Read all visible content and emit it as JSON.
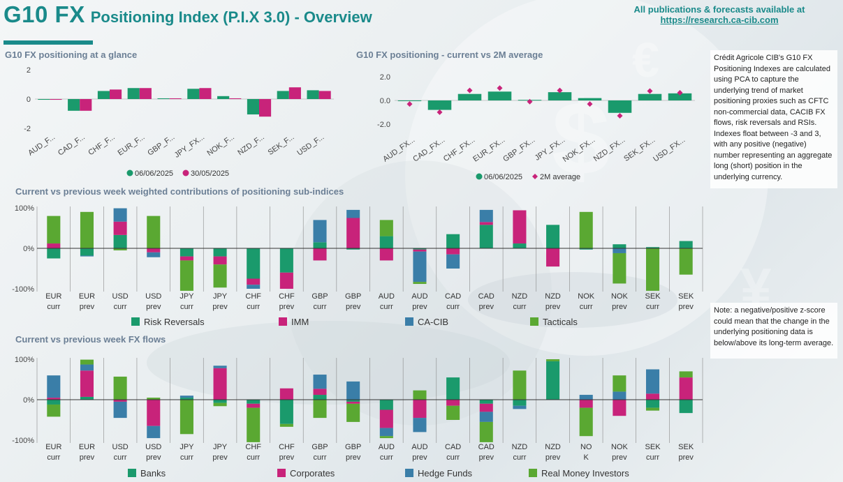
{
  "header": {
    "title_main": "G10 FX",
    "title_sub": "Positioning Index (P.I.X 3.0) - Overview",
    "publications_text": "All publications & forecasts available at",
    "publications_link": "https://research.ca-cib.com"
  },
  "notes": {
    "description": "Crédit Agricole CIB's G10 FX Positioning Indexes are calculated using PCA to capture the underlying trend of market positioning proxies such as CFTC non-commercial data, CACIB FX flows, risk reversals and RSIs. Indexes float between -3 and 3, with any positive (negative) number representing an aggregate long (short) position in the underlying currency.",
    "zscore": "Note: a negative/positive z-score could mean that the change in the underlying positioning data is below/above its long-term average."
  },
  "colors": {
    "teal": "#1a9a6c",
    "magenta": "#c8237a",
    "blue": "#3a7ea8",
    "green": "#5aa832"
  },
  "chart_data": [
    {
      "id": "glance",
      "type": "bar",
      "title": "G10 FX positioning at a glance",
      "categories": [
        "AUD_F...",
        "CAD_F...",
        "CHF_F...",
        "EUR_F...",
        "GBP_F...",
        "JPY_FX...",
        "NOK_F...",
        "NZD_F...",
        "SEK_F...",
        "USD_F..."
      ],
      "series": [
        {
          "name": "06/06/2025",
          "color": "#1a9a6c",
          "values": [
            -0.05,
            -0.8,
            0.55,
            0.75,
            0.05,
            0.7,
            0.2,
            -1.05,
            0.55,
            0.6
          ]
        },
        {
          "name": "30/05/2025",
          "color": "#c8237a",
          "values": [
            -0.05,
            -0.8,
            0.65,
            0.75,
            0.05,
            0.75,
            0.05,
            -1.2,
            0.8,
            0.55
          ]
        }
      ],
      "ylim": [
        -2,
        2
      ],
      "yticks": [
        "2",
        "0",
        "-2"
      ],
      "legend": "bottom"
    },
    {
      "id": "avg",
      "type": "bar",
      "title": "G10 FX positioning - current vs 2M average",
      "categories": [
        "AUD_FX...",
        "CAD_FX...",
        "CHF_FX...",
        "EUR_FX...",
        "GBP_FX...",
        "JPY_FX...",
        "NOK_FX...",
        "NZD_FX...",
        "SEK_FX...",
        "USD_FX..."
      ],
      "series": [
        {
          "name": "06/06/2025",
          "color": "#1a9a6c",
          "values": [
            -0.05,
            -0.8,
            0.55,
            0.75,
            0.05,
            0.7,
            0.2,
            -1.05,
            0.55,
            0.6
          ]
        },
        {
          "name": "2M average",
          "color": "#c8237a",
          "marker": "diamond",
          "values": [
            -0.3,
            -1.0,
            0.85,
            1.05,
            -0.1,
            0.85,
            -0.3,
            -1.3,
            0.8,
            0.65
          ]
        }
      ],
      "ylim": [
        -2.6,
        2.6
      ],
      "yticks": [
        "2.0",
        "0.0",
        "-2.0"
      ],
      "legend": "bottom"
    },
    {
      "id": "contrib",
      "type": "stacked-bar",
      "title": "Current vs previous week weighted contributions of positioning sub-indices",
      "categories": [
        [
          "EUR",
          "curr"
        ],
        [
          "EUR",
          "prev"
        ],
        [
          "USD",
          "curr"
        ],
        [
          "USD",
          "prev"
        ],
        [
          "JPY",
          "curr"
        ],
        [
          "JPY",
          "prev"
        ],
        [
          "CHF",
          "curr"
        ],
        [
          "CHF",
          "prev"
        ],
        [
          "GBP",
          "curr"
        ],
        [
          "GBP",
          "prev"
        ],
        [
          "AUD",
          "curr"
        ],
        [
          "AUD",
          "prev"
        ],
        [
          "CAD",
          "curr"
        ],
        [
          "CAD",
          "prev"
        ],
        [
          "NZD",
          "curr"
        ],
        [
          "NZD",
          "prev"
        ],
        [
          "NOK",
          "curr"
        ],
        [
          "NOK",
          "prev"
        ],
        [
          "SEK",
          "curr"
        ],
        [
          "SEK",
          "prev"
        ]
      ],
      "yticks": [
        "100%",
        "0%",
        "-100%"
      ],
      "ylim": [
        -100,
        100
      ],
      "series": [
        {
          "name": "Risk Reversals",
          "color": "#1a9a6c",
          "values": [
            -25,
            -18,
            33,
            0,
            -20,
            -20,
            -75,
            -60,
            15,
            -3,
            30,
            -3,
            35,
            58,
            12,
            58,
            -3,
            10,
            3,
            18
          ]
        },
        {
          "name": "IMM",
          "color": "#c8237a",
          "values": [
            12,
            0,
            33,
            -10,
            -10,
            -20,
            -15,
            -40,
            -30,
            75,
            -30,
            -5,
            -15,
            7,
            82,
            -45,
            0,
            0,
            0,
            0
          ]
        },
        {
          "name": "CA-CIB",
          "color": "#3a7ea8",
          "values": [
            0,
            -2,
            33,
            -12,
            0,
            0,
            -10,
            0,
            55,
            20,
            0,
            -75,
            -35,
            30,
            0,
            0,
            0,
            -12,
            0,
            0
          ]
        },
        {
          "name": "Tacticals",
          "color": "#5aa832",
          "values": [
            68,
            90,
            -5,
            80,
            -75,
            -57,
            0,
            0,
            0,
            0,
            40,
            -5,
            0,
            0,
            0,
            0,
            90,
            -75,
            -105,
            -65
          ]
        }
      ],
      "legend": "bottom"
    },
    {
      "id": "flows",
      "type": "stacked-bar",
      "title": "Current vs previous week FX flows",
      "categories": [
        [
          "EUR",
          "curr"
        ],
        [
          "EUR",
          "prev"
        ],
        [
          "USD",
          "curr"
        ],
        [
          "USD",
          "prev"
        ],
        [
          "JPY",
          "curr"
        ],
        [
          "JPY",
          "prev"
        ],
        [
          "CHF",
          "curr"
        ],
        [
          "CHF",
          "prev"
        ],
        [
          "GBP",
          "curr"
        ],
        [
          "GBP",
          "prev"
        ],
        [
          "AUD",
          "curr"
        ],
        [
          "AUD",
          "prev"
        ],
        [
          "CAD",
          "curr"
        ],
        [
          "CAD",
          "prev"
        ],
        [
          "NZD",
          "curr"
        ],
        [
          "NZD",
          "prev"
        ],
        [
          "NO",
          "K"
        ],
        [
          "NOK",
          "prev"
        ],
        [
          "SEK",
          "curr"
        ],
        [
          "SEK",
          "prev"
        ]
      ],
      "yticks": [
        "100%",
        "0%",
        "-100%"
      ],
      "ylim": [
        -100,
        100
      ],
      "series": [
        {
          "name": "Banks",
          "color": "#1a9a6c",
          "values": [
            -12,
            7,
            0,
            0,
            5,
            -8,
            -10,
            -60,
            12,
            -5,
            -25,
            0,
            55,
            -10,
            -15,
            95,
            0,
            0,
            -20,
            -33
          ]
        },
        {
          "name": "Corporates",
          "color": "#c8237a",
          "values": [
            5,
            65,
            -5,
            -65,
            0,
            78,
            -10,
            28,
            15,
            -5,
            -45,
            -45,
            -15,
            -20,
            0,
            0,
            -20,
            -40,
            15,
            55
          ]
        },
        {
          "name": "Hedge Funds",
          "color": "#3a7ea8",
          "values": [
            55,
            15,
            -40,
            -30,
            5,
            6,
            0,
            0,
            35,
            45,
            -20,
            -35,
            0,
            -25,
            -8,
            0,
            12,
            20,
            60,
            0
          ]
        },
        {
          "name": "Real Money Investors",
          "color": "#5aa832",
          "values": [
            -30,
            12,
            57,
            5,
            -85,
            -8,
            -85,
            -7,
            -45,
            -45,
            -5,
            23,
            -35,
            -50,
            72,
            5,
            -70,
            40,
            -7,
            15
          ]
        }
      ],
      "legend": "bottom"
    }
  ]
}
